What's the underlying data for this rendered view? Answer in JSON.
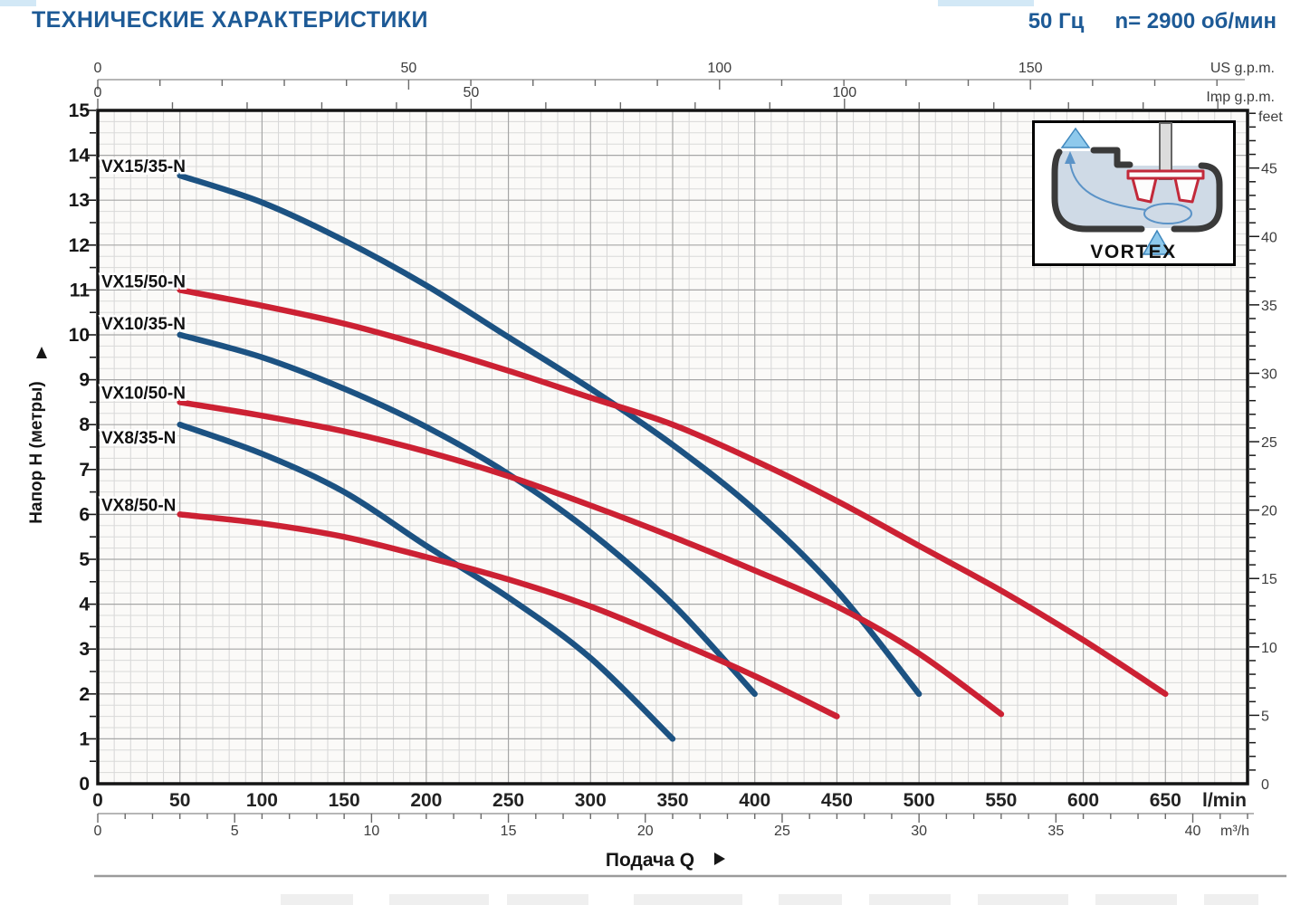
{
  "header": {
    "title": "ТЕХНИЧЕСКИЕ ХАРАКТЕРИСТИКИ",
    "frequency": "50 Гц",
    "speed": "n= 2900 об/мин"
  },
  "chart_data": {
    "type": "line",
    "title": "",
    "xlabel": "Подача Q",
    "ylabel": "Напор H (метры)",
    "x_unit_primary": "l/min",
    "x_unit_secondary": "m³/h",
    "x_unit_us": "US g.p.m.",
    "x_unit_imp": "Imp g.p.m.",
    "y_unit_secondary": "feet",
    "x_range_lmin": [
      0,
      700
    ],
    "y_range_m": [
      0,
      15
    ],
    "grid": {
      "minor_x_lmin": 10,
      "major_x_lmin": 50,
      "minor_y_m": 0.25,
      "major_y_m": 1,
      "grid_on": true
    },
    "x_ticks_lmin": [
      0,
      50,
      100,
      150,
      200,
      250,
      300,
      350,
      400,
      450,
      500,
      550,
      600,
      650
    ],
    "x_ticks_m3h": [
      0,
      5,
      10,
      15,
      20,
      25,
      30,
      35,
      40
    ],
    "x_ticks_usgpm": [
      0,
      50,
      100,
      150
    ],
    "x_ticks_impgpm": [
      0,
      50,
      100
    ],
    "y_ticks_m": [
      0,
      1,
      2,
      3,
      4,
      5,
      6,
      7,
      8,
      9,
      10,
      11,
      12,
      13,
      14,
      15
    ],
    "y_ticks_feet": [
      0,
      5,
      10,
      15,
      20,
      25,
      30,
      35,
      40,
      45
    ],
    "legend_position": "labels-at-curve-start",
    "colors": {
      "blue": "#1c5282",
      "red": "#cc2133",
      "title_blue": "#1d5a96"
    },
    "series": [
      {
        "name": "VX15/35-N",
        "color": "#1c5282",
        "points": [
          [
            50,
            13.55
          ],
          [
            100,
            12.95
          ],
          [
            150,
            12.1
          ],
          [
            200,
            11.1
          ],
          [
            250,
            9.95
          ],
          [
            300,
            8.8
          ],
          [
            350,
            7.55
          ],
          [
            400,
            6.1
          ],
          [
            450,
            4.3
          ],
          [
            500,
            2.0
          ]
        ]
      },
      {
        "name": "VX15/50-N",
        "color": "#cc2133",
        "points": [
          [
            50,
            11.0
          ],
          [
            100,
            10.65
          ],
          [
            150,
            10.25
          ],
          [
            200,
            9.75
          ],
          [
            250,
            9.2
          ],
          [
            300,
            8.6
          ],
          [
            350,
            8.0
          ],
          [
            400,
            7.2
          ],
          [
            450,
            6.3
          ],
          [
            500,
            5.3
          ],
          [
            550,
            4.3
          ],
          [
            600,
            3.2
          ],
          [
            650,
            2.0
          ]
        ]
      },
      {
        "name": "VX10/35-N",
        "color": "#1c5282",
        "points": [
          [
            50,
            10.0
          ],
          [
            100,
            9.5
          ],
          [
            150,
            8.8
          ],
          [
            200,
            7.95
          ],
          [
            250,
            6.9
          ],
          [
            300,
            5.6
          ],
          [
            350,
            4.0
          ],
          [
            400,
            2.0
          ]
        ]
      },
      {
        "name": "VX10/50-N",
        "color": "#cc2133",
        "points": [
          [
            50,
            8.5
          ],
          [
            100,
            8.2
          ],
          [
            150,
            7.85
          ],
          [
            200,
            7.4
          ],
          [
            250,
            6.85
          ],
          [
            300,
            6.2
          ],
          [
            350,
            5.5
          ],
          [
            400,
            4.75
          ],
          [
            450,
            3.95
          ],
          [
            500,
            2.9
          ],
          [
            550,
            1.55
          ]
        ]
      },
      {
        "name": "VX8/35-N",
        "color": "#1c5282",
        "points": [
          [
            50,
            8.0
          ],
          [
            100,
            7.35
          ],
          [
            150,
            6.5
          ],
          [
            200,
            5.3
          ],
          [
            250,
            4.15
          ],
          [
            300,
            2.8
          ],
          [
            350,
            1.0
          ]
        ]
      },
      {
        "name": "VX8/50-N",
        "color": "#cc2133",
        "points": [
          [
            50,
            6.0
          ],
          [
            100,
            5.8
          ],
          [
            150,
            5.5
          ],
          [
            200,
            5.05
          ],
          [
            250,
            4.55
          ],
          [
            300,
            3.95
          ],
          [
            350,
            3.2
          ],
          [
            400,
            2.4
          ],
          [
            450,
            1.5
          ]
        ]
      }
    ]
  },
  "inset": {
    "label": "VORTEX"
  }
}
